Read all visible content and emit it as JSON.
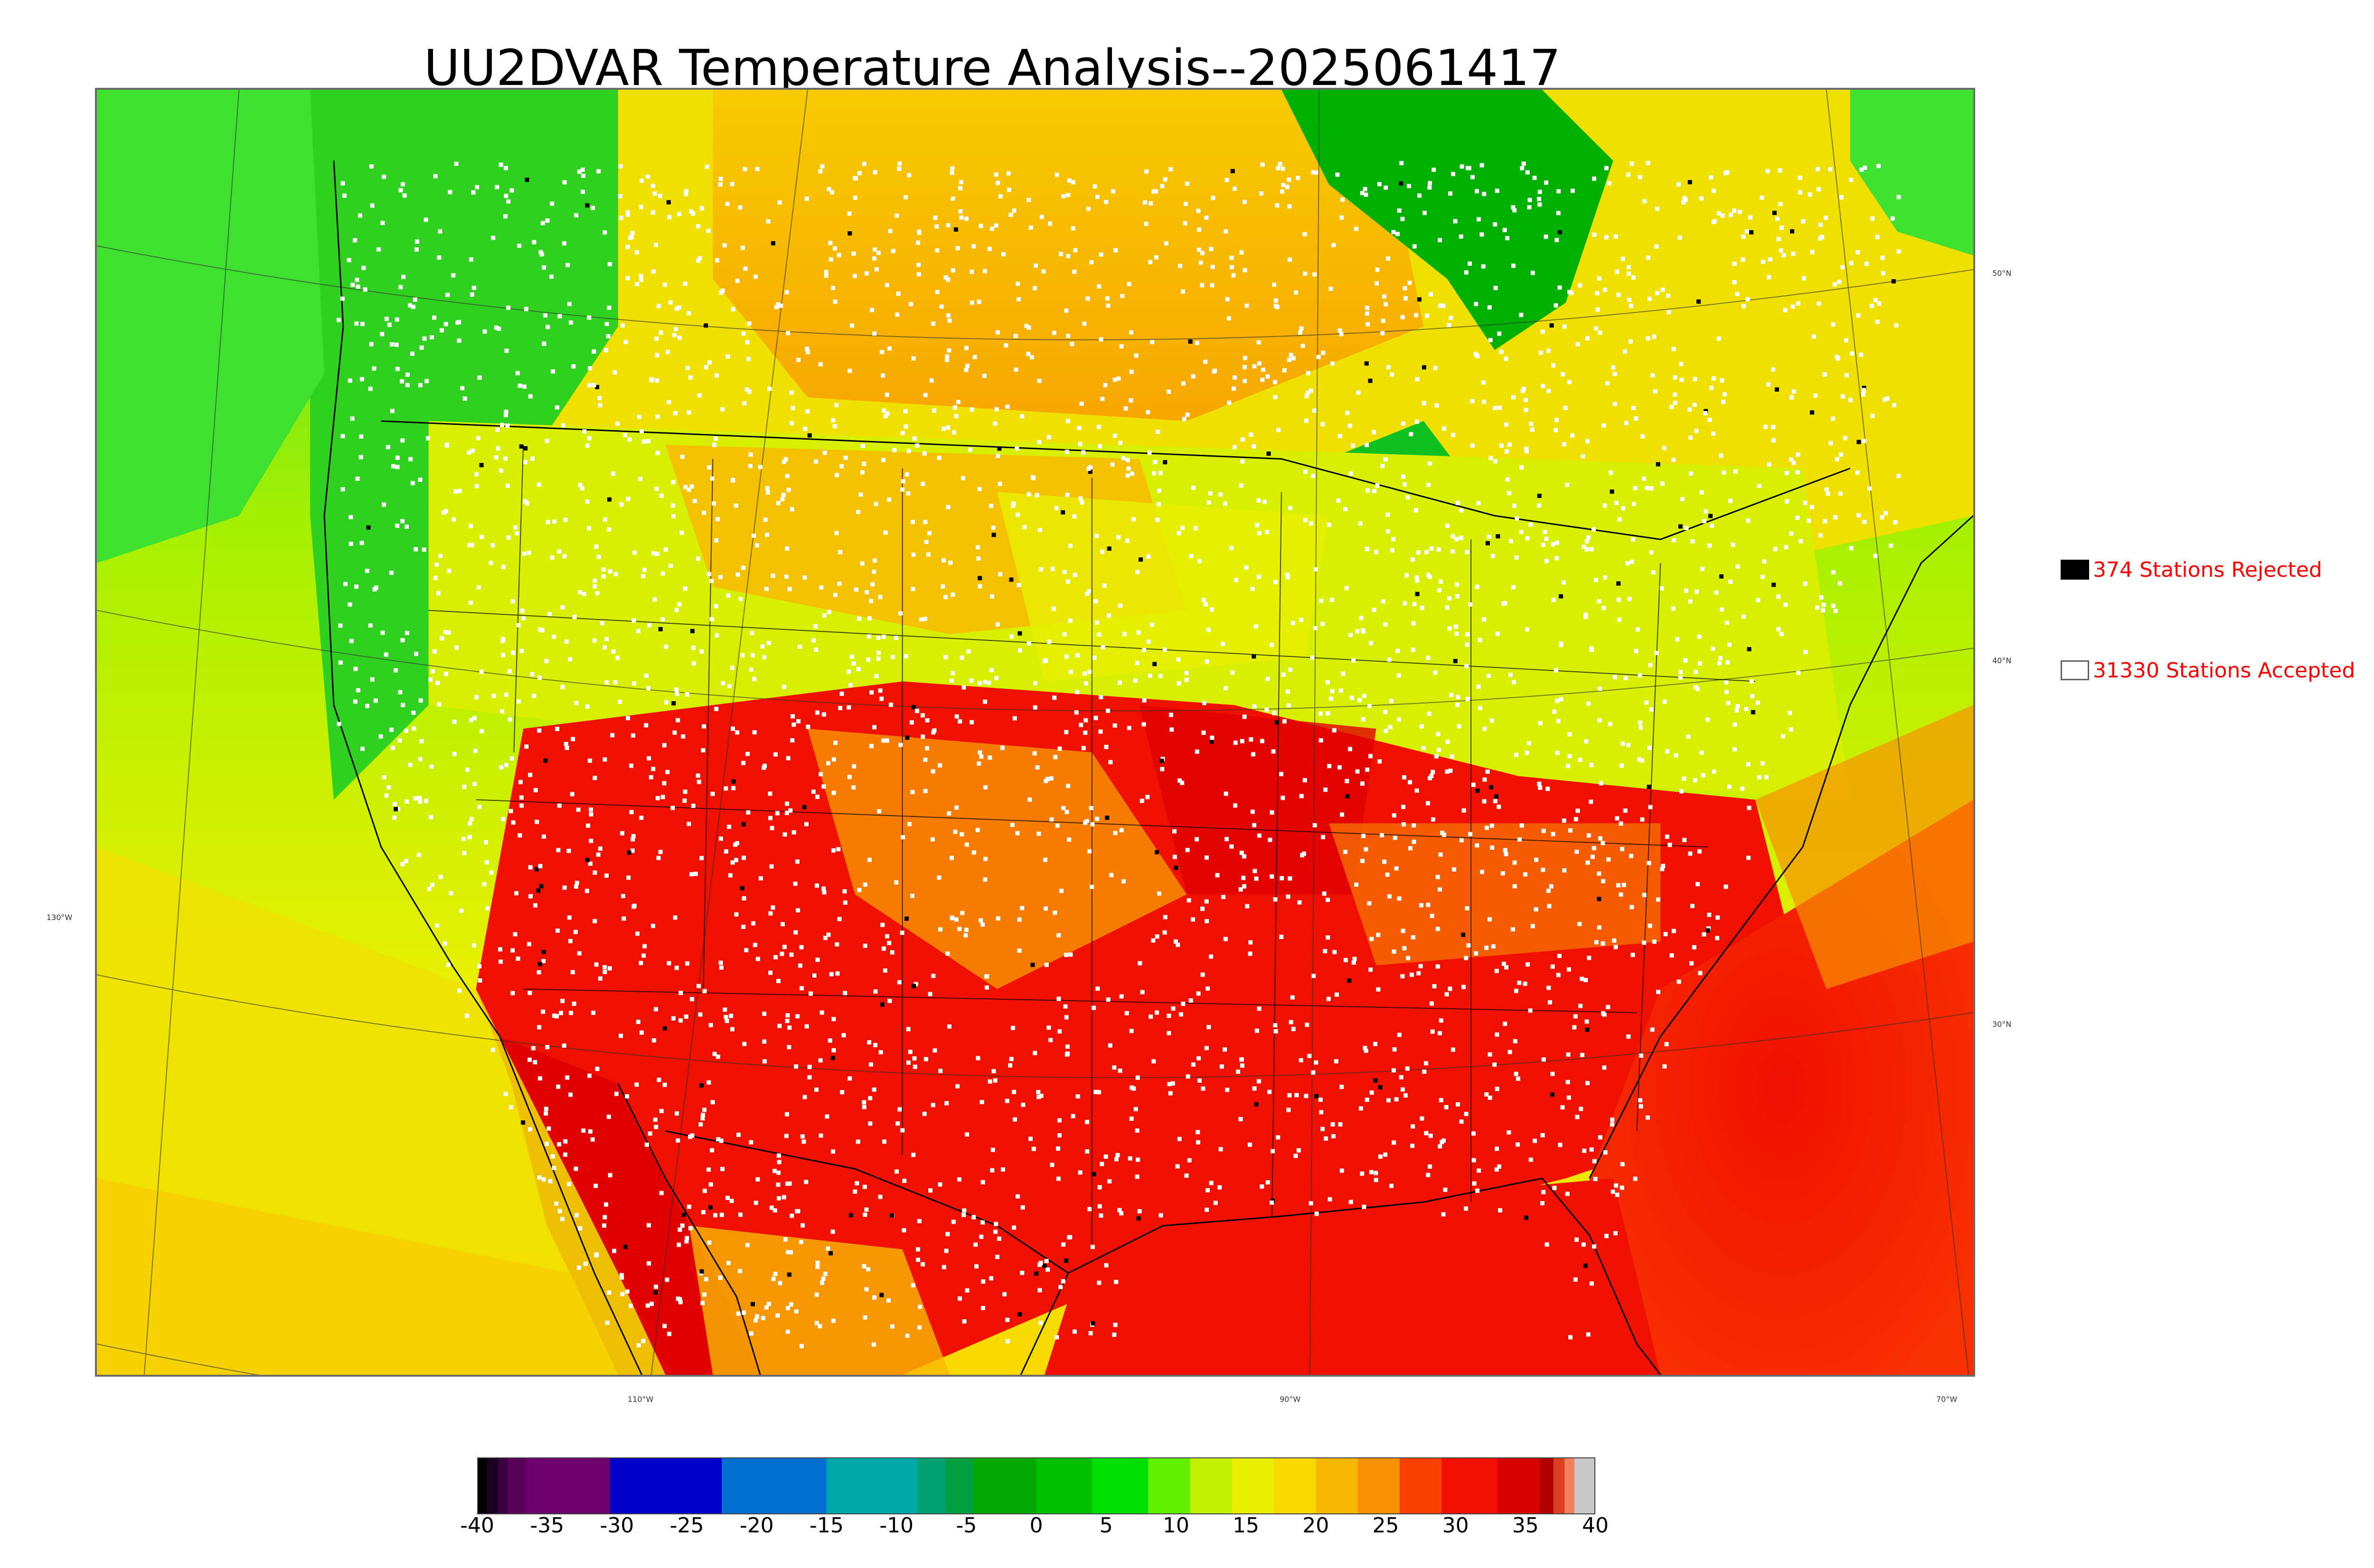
{
  "title": "UU2DVAR Temperature Analysis--2025061417",
  "map": {
    "background_colors": {
      "cold_green": "#10c020",
      "green": "#40e030",
      "yellow_green": "#c8f000",
      "yellow": "#f0e800",
      "orange": "#f8a000",
      "red": "#f02000",
      "dark_red": "#d00000",
      "water_green": "#00b000"
    },
    "coastline_color": "#000000",
    "station_accepted_color": "#ffffff",
    "station_rejected_color": "#000000",
    "latitude_labels": [
      "50°N",
      "40°N",
      "30°N"
    ],
    "longitude_labels": [
      "130°W",
      "110°W",
      "90°W",
      "70°W"
    ]
  },
  "legend": {
    "rejected_label": "374 Stations Rejected",
    "accepted_label": "31330 Stations Accepted",
    "rejected_swatch_color": "#000000",
    "accepted_swatch_color": "#ffffff"
  },
  "colorbar": {
    "ticks": [
      "-40",
      "-35",
      "-30",
      "-25",
      "-20",
      "-15",
      "-10",
      "-5",
      "0",
      "5",
      "10",
      "15",
      "20",
      "25",
      "30",
      "35",
      "40"
    ],
    "range": [
      -40,
      40
    ],
    "segments": [
      {
        "from": -40,
        "to": -39.3,
        "color": "#000000"
      },
      {
        "from": -39.3,
        "to": -38.5,
        "color": "#1a0020"
      },
      {
        "from": -38.5,
        "to": -37.8,
        "color": "#3a0040"
      },
      {
        "from": -37.8,
        "to": -36.5,
        "color": "#5a005a"
      },
      {
        "from": -36.5,
        "to": -30.5,
        "color": "#6e006e"
      },
      {
        "from": -30.5,
        "to": -22.5,
        "color": "#0000c8"
      },
      {
        "from": -22.5,
        "to": -15.0,
        "color": "#0070d0"
      },
      {
        "from": -15.0,
        "to": -8.5,
        "color": "#00a8a8"
      },
      {
        "from": -8.5,
        "to": -6.5,
        "color": "#00a070"
      },
      {
        "from": -6.5,
        "to": -4.5,
        "color": "#00a040"
      },
      {
        "from": -4.5,
        "to": 0,
        "color": "#00a800"
      },
      {
        "from": 0,
        "to": 4,
        "color": "#00c000"
      },
      {
        "from": 4,
        "to": 8,
        "color": "#00e000"
      },
      {
        "from": 8,
        "to": 11,
        "color": "#60f000"
      },
      {
        "from": 11,
        "to": 14,
        "color": "#c0f000"
      },
      {
        "from": 14,
        "to": 17,
        "color": "#e8f000"
      },
      {
        "from": 17,
        "to": 20,
        "color": "#f8d800"
      },
      {
        "from": 20,
        "to": 23,
        "color": "#f8b800"
      },
      {
        "from": 23,
        "to": 26,
        "color": "#f89000"
      },
      {
        "from": 26,
        "to": 29,
        "color": "#f84000"
      },
      {
        "from": 29,
        "to": 33,
        "color": "#f01000"
      },
      {
        "from": 33,
        "to": 36,
        "color": "#d80000"
      },
      {
        "from": 36,
        "to": 37,
        "color": "#b00000"
      },
      {
        "from": 37,
        "to": 37.8,
        "color": "#d84020"
      },
      {
        "from": 37.8,
        "to": 38.5,
        "color": "#f08060"
      },
      {
        "from": 38.5,
        "to": 40,
        "color": "#c8c8c8"
      }
    ]
  }
}
